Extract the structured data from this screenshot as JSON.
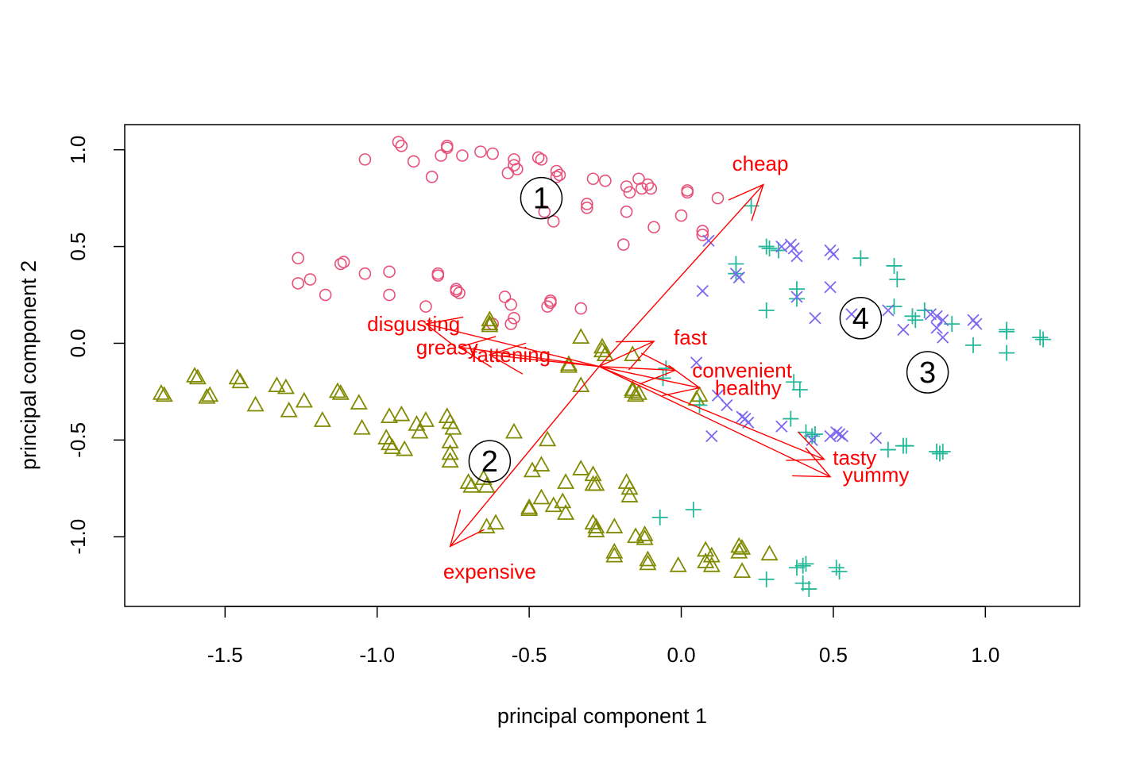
{
  "chart_data": {
    "type": "scatter",
    "title": "",
    "xlabel": "principal component 1",
    "ylabel": "principal component 2",
    "xlim": [
      -1.83,
      1.31
    ],
    "ylim": [
      -1.36,
      1.13
    ],
    "grid": false,
    "x_ticks": [
      {
        "value": -1.5,
        "label": "-1.5"
      },
      {
        "value": -1.0,
        "label": "-1.0"
      },
      {
        "value": -0.5,
        "label": "-0.5"
      },
      {
        "value": 0.0,
        "label": "0.0"
      },
      {
        "value": 0.5,
        "label": "0.5"
      },
      {
        "value": 1.0,
        "label": "1.0"
      }
    ],
    "y_ticks": [
      {
        "value": -1.0,
        "label": "-1.0"
      },
      {
        "value": -0.5,
        "label": "-0.5"
      },
      {
        "value": 0.0,
        "label": "0.0"
      },
      {
        "value": 0.5,
        "label": "0.5"
      },
      {
        "value": 1.0,
        "label": "1.0"
      }
    ],
    "series": [
      {
        "marker": "circle",
        "color": "#e8507a",
        "points": [
          [
            -0.93,
            1.04
          ],
          [
            -0.92,
            1.02
          ],
          [
            -0.77,
            1.02
          ],
          [
            -0.77,
            1.01
          ],
          [
            -0.66,
            0.99
          ],
          [
            -0.62,
            0.98
          ],
          [
            -0.55,
            0.95
          ],
          [
            -0.47,
            0.96
          ],
          [
            -0.46,
            0.95
          ],
          [
            -0.41,
            0.89
          ],
          [
            -0.4,
            0.87
          ],
          [
            -0.41,
            0.86
          ],
          [
            -0.72,
            0.97
          ],
          [
            -0.79,
            0.97
          ],
          [
            -0.88,
            0.94
          ],
          [
            -1.04,
            0.95
          ],
          [
            -0.82,
            0.86
          ],
          [
            -0.55,
            0.92
          ],
          [
            -0.54,
            0.9
          ],
          [
            -0.57,
            0.88
          ],
          [
            -0.29,
            0.85
          ],
          [
            -0.25,
            0.84
          ],
          [
            -0.14,
            0.85
          ],
          [
            -0.11,
            0.82
          ],
          [
            -0.1,
            0.8
          ],
          [
            -0.13,
            0.8
          ],
          [
            -0.18,
            0.81
          ],
          [
            -0.17,
            0.78
          ],
          [
            0.02,
            0.79
          ],
          [
            0.12,
            0.75
          ],
          [
            0.02,
            0.78
          ],
          [
            -0.31,
            0.72
          ],
          [
            -0.31,
            0.7
          ],
          [
            -0.18,
            0.68
          ],
          [
            0.0,
            0.66
          ],
          [
            0.07,
            0.58
          ],
          [
            0.07,
            0.56
          ],
          [
            -0.09,
            0.6
          ],
          [
            -0.19,
            0.51
          ],
          [
            -0.45,
            0.68
          ],
          [
            -0.42,
            0.63
          ],
          [
            -1.26,
            0.44
          ],
          [
            -1.26,
            0.31
          ],
          [
            -1.22,
            0.33
          ],
          [
            -1.11,
            0.42
          ],
          [
            -1.12,
            0.41
          ],
          [
            -1.04,
            0.36
          ],
          [
            -0.96,
            0.37
          ],
          [
            -0.96,
            0.25
          ],
          [
            -1.17,
            0.25
          ],
          [
            -0.84,
            0.19
          ],
          [
            -0.8,
            0.36
          ],
          [
            -0.8,
            0.35
          ],
          [
            -0.74,
            0.28
          ],
          [
            -0.74,
            0.27
          ],
          [
            -0.73,
            0.26
          ],
          [
            -0.58,
            0.24
          ],
          [
            -0.56,
            0.2
          ],
          [
            -0.43,
            0.21
          ],
          [
            -0.43,
            0.22
          ],
          [
            -0.44,
            0.19
          ],
          [
            -0.33,
            0.18
          ],
          [
            -0.55,
            0.13
          ],
          [
            -0.56,
            0.1
          ],
          [
            -0.62,
            0.1
          ]
        ]
      },
      {
        "marker": "triangle",
        "color": "#808a00",
        "points": [
          [
            -1.71,
            -0.26
          ],
          [
            -1.7,
            -0.27
          ],
          [
            -1.6,
            -0.17
          ],
          [
            -1.59,
            -0.18
          ],
          [
            -1.56,
            -0.28
          ],
          [
            -1.55,
            -0.27
          ],
          [
            -1.46,
            -0.18
          ],
          [
            -1.45,
            -0.2
          ],
          [
            -1.4,
            -0.32
          ],
          [
            -1.33,
            -0.22
          ],
          [
            -1.3,
            -0.23
          ],
          [
            -1.29,
            -0.35
          ],
          [
            -1.24,
            -0.3
          ],
          [
            -1.18,
            -0.4
          ],
          [
            -1.13,
            -0.25
          ],
          [
            -1.12,
            -0.26
          ],
          [
            -1.06,
            -0.31
          ],
          [
            -1.05,
            -0.44
          ],
          [
            -0.96,
            -0.38
          ],
          [
            -0.92,
            -0.37
          ],
          [
            -0.97,
            -0.49
          ],
          [
            -0.96,
            -0.52
          ],
          [
            -0.95,
            -0.54
          ],
          [
            -0.91,
            -0.55
          ],
          [
            -0.86,
            -0.46
          ],
          [
            -0.84,
            -0.4
          ],
          [
            -0.87,
            -0.42
          ],
          [
            -0.77,
            -0.38
          ],
          [
            -0.76,
            -0.41
          ],
          [
            -0.75,
            -0.44
          ],
          [
            -0.76,
            -0.51
          ],
          [
            -0.76,
            -0.57
          ],
          [
            -0.76,
            -0.61
          ],
          [
            -0.7,
            -0.72
          ],
          [
            -0.69,
            -0.74
          ],
          [
            -0.65,
            -0.7
          ],
          [
            -0.64,
            -0.74
          ],
          [
            -0.55,
            -0.46
          ],
          [
            -0.49,
            -0.66
          ],
          [
            -0.46,
            -0.63
          ],
          [
            -0.44,
            -0.5
          ],
          [
            -0.46,
            -0.8
          ],
          [
            -0.5,
            -0.85
          ],
          [
            -0.5,
            -0.86
          ],
          [
            -0.42,
            -0.84
          ],
          [
            -0.39,
            -0.82
          ],
          [
            -0.38,
            -0.88
          ],
          [
            -0.38,
            -0.72
          ],
          [
            -0.33,
            -0.65
          ],
          [
            -0.29,
            -0.68
          ],
          [
            -0.29,
            -0.73
          ],
          [
            -0.28,
            -0.73
          ],
          [
            -0.29,
            -0.93
          ],
          [
            -0.28,
            -0.95
          ],
          [
            -0.28,
            -0.97
          ],
          [
            -0.22,
            -0.95
          ],
          [
            -0.18,
            -0.72
          ],
          [
            -0.17,
            -0.75
          ],
          [
            -0.17,
            -0.79
          ],
          [
            -0.15,
            -1.0
          ],
          [
            -0.12,
            -0.99
          ],
          [
            -0.12,
            -1.01
          ],
          [
            -0.11,
            -1.12
          ],
          [
            -0.11,
            -1.14
          ],
          [
            -0.01,
            -1.15
          ],
          [
            0.08,
            -1.07
          ],
          [
            0.1,
            -1.1
          ],
          [
            0.08,
            -1.13
          ],
          [
            0.1,
            -1.15
          ],
          [
            0.19,
            -1.05
          ],
          [
            0.19,
            -1.08
          ],
          [
            0.2,
            -1.06
          ],
          [
            0.29,
            -1.09
          ],
          [
            0.2,
            -1.18
          ],
          [
            -0.22,
            -1.08
          ],
          [
            -0.22,
            -1.1
          ],
          [
            -0.61,
            -0.93
          ],
          [
            -0.64,
            -0.95
          ],
          [
            -0.63,
            0.12
          ],
          [
            -0.63,
            0.1
          ],
          [
            -0.63,
            0.09
          ],
          [
            -0.33,
            0.03
          ],
          [
            -0.26,
            -0.02
          ],
          [
            -0.26,
            -0.04
          ],
          [
            -0.25,
            -0.06
          ],
          [
            -0.37,
            -0.11
          ],
          [
            -0.37,
            -0.12
          ],
          [
            -0.33,
            -0.22
          ],
          [
            -0.16,
            -0.06
          ],
          [
            -0.16,
            -0.24
          ],
          [
            -0.16,
            -0.25
          ],
          [
            -0.15,
            -0.27
          ],
          [
            -0.14,
            -0.26
          ],
          [
            0.06,
            -0.27
          ],
          [
            0.05,
            -0.29
          ]
        ]
      },
      {
        "marker": "plus",
        "color": "#24b89a",
        "points": [
          [
            0.23,
            0.71
          ],
          [
            0.28,
            0.5
          ],
          [
            0.29,
            0.49
          ],
          [
            0.32,
            0.48
          ],
          [
            0.18,
            0.41
          ],
          [
            0.18,
            0.36
          ],
          [
            0.38,
            0.23
          ],
          [
            0.38,
            0.28
          ],
          [
            0.28,
            0.17
          ],
          [
            0.59,
            0.44
          ],
          [
            0.7,
            0.4
          ],
          [
            0.71,
            0.33
          ],
          [
            0.7,
            0.19
          ],
          [
            0.76,
            0.14
          ],
          [
            0.77,
            0.12
          ],
          [
            0.8,
            0.17
          ],
          [
            0.89,
            0.1
          ],
          [
            0.96,
            -0.01
          ],
          [
            1.07,
            0.07
          ],
          [
            1.07,
            0.06
          ],
          [
            1.07,
            -0.05
          ],
          [
            1.18,
            0.03
          ],
          [
            1.19,
            0.02
          ],
          [
            0.37,
            -0.2
          ],
          [
            0.39,
            -0.24
          ],
          [
            0.36,
            -0.39
          ],
          [
            0.41,
            -0.46
          ],
          [
            0.43,
            -0.48
          ],
          [
            0.44,
            -0.47
          ],
          [
            0.68,
            -0.55
          ],
          [
            0.73,
            -0.53
          ],
          [
            0.74,
            -0.53
          ],
          [
            0.84,
            -0.56
          ],
          [
            0.85,
            -0.57
          ],
          [
            0.86,
            -0.56
          ],
          [
            -0.07,
            -0.9
          ],
          [
            0.04,
            -0.86
          ],
          [
            0.28,
            -1.22
          ],
          [
            0.38,
            -1.16
          ],
          [
            0.4,
            -1.15
          ],
          [
            0.41,
            -1.14
          ],
          [
            0.4,
            -1.24
          ],
          [
            0.42,
            -1.27
          ],
          [
            0.51,
            -1.16
          ],
          [
            0.52,
            -1.18
          ],
          [
            0.06,
            -0.32
          ],
          [
            -0.05,
            -0.13
          ],
          [
            -0.06,
            -0.18
          ]
        ]
      },
      {
        "marker": "cross",
        "color": "#7b68ee",
        "points": [
          [
            0.09,
            0.53
          ],
          [
            0.07,
            0.27
          ],
          [
            0.18,
            0.36
          ],
          [
            0.19,
            0.34
          ],
          [
            0.33,
            0.5
          ],
          [
            0.36,
            0.51
          ],
          [
            0.37,
            0.49
          ],
          [
            0.38,
            0.45
          ],
          [
            0.49,
            0.48
          ],
          [
            0.5,
            0.46
          ],
          [
            0.38,
            0.24
          ],
          [
            0.44,
            0.13
          ],
          [
            0.49,
            0.29
          ],
          [
            0.56,
            0.15
          ],
          [
            0.68,
            0.17
          ],
          [
            0.73,
            0.07
          ],
          [
            0.82,
            0.15
          ],
          [
            0.84,
            0.14
          ],
          [
            0.84,
            0.08
          ],
          [
            0.86,
            0.12
          ],
          [
            0.96,
            0.12
          ],
          [
            0.97,
            0.1
          ],
          [
            0.86,
            0.03
          ],
          [
            0.05,
            -0.1
          ],
          [
            0.15,
            -0.32
          ],
          [
            0.12,
            -0.27
          ],
          [
            0.2,
            -0.38
          ],
          [
            0.21,
            -0.39
          ],
          [
            0.22,
            -0.41
          ],
          [
            0.33,
            -0.43
          ],
          [
            0.1,
            -0.48
          ],
          [
            0.43,
            -0.5
          ],
          [
            0.49,
            -0.48
          ],
          [
            0.51,
            -0.46
          ],
          [
            0.52,
            -0.47
          ],
          [
            0.53,
            -0.48
          ],
          [
            0.64,
            -0.49
          ]
        ]
      }
    ],
    "arrows": [
      {
        "label": "cheap",
        "x": 0.27,
        "y": 0.82,
        "lx": 0.26,
        "ly": 0.93
      },
      {
        "label": "expensive",
        "x": -0.76,
        "y": -1.05,
        "lx": -0.63,
        "ly": -1.18
      },
      {
        "label": "disgusting",
        "x": -0.84,
        "y": 0.1,
        "lx": -0.88,
        "ly": 0.1
      },
      {
        "label": "greasy",
        "x": -0.73,
        "y": -0.02,
        "lx": -0.77,
        "ly": -0.02
      },
      {
        "label": "fattening",
        "x": -0.63,
        "y": -0.06,
        "lx": -0.56,
        "ly": -0.06
      },
      {
        "label": "fast",
        "x": -0.09,
        "y": 0.01,
        "lx": 0.03,
        "ly": 0.03
      },
      {
        "label": "convenient",
        "x": -0.02,
        "y": -0.14,
        "lx": 0.2,
        "ly": -0.14
      },
      {
        "label": "healthy",
        "x": 0.06,
        "y": -0.23,
        "lx": 0.22,
        "ly": -0.23
      },
      {
        "label": "tasty",
        "x": 0.47,
        "y": -0.6,
        "lx": 0.57,
        "ly": -0.59
      },
      {
        "label": "yummy",
        "x": 0.49,
        "y": -0.69,
        "lx": 0.64,
        "ly": -0.68
      }
    ],
    "arrow_origin": [
      -0.27,
      -0.12
    ],
    "arrow_color": "#ff0000",
    "cluster_labels": [
      {
        "label": "1",
        "x": -0.46,
        "y": 0.75
      },
      {
        "label": "2",
        "x": -0.63,
        "y": -0.61
      },
      {
        "label": "3",
        "x": 0.81,
        "y": -0.15
      },
      {
        "label": "4",
        "x": 0.59,
        "y": 0.13
      }
    ]
  }
}
